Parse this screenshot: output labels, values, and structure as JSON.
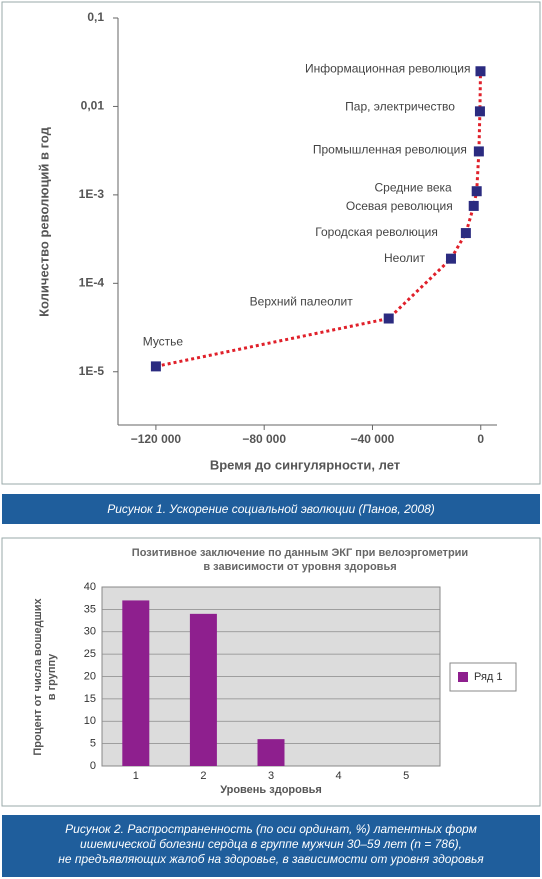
{
  "chart_data": [
    {
      "type": "scatter",
      "x_label": "Время до сингулярности, лет",
      "y_label": "Количество революций в год",
      "caption": "Рисунок 1.  Ускорение социальной эволюции (Панов, 2008)",
      "series": [
        {
          "color": "#2b2b80",
          "x": [
            -120000,
            -34000,
            -11000,
            -5500,
            -2600,
            -1500,
            -700,
            -300,
            -100
          ],
          "values": [
            1.15e-05,
            4e-05,
            0.00019,
            0.00037,
            0.00075,
            0.0011,
            0.0031,
            0.0088,
            0.025
          ],
          "labels": [
            "Мустье",
            "Верхний палеолит",
            "Неолит",
            "Городская революция",
            "Осевая революция",
            "Средние века",
            "Промышленная революция",
            "Пар, электричество",
            "Информационная революция"
          ]
        }
      ],
      "trendline": true,
      "trendline_color": "#e0202a",
      "log_y": true,
      "xlim": [
        -134000,
        6000
      ],
      "xticks": [
        {
          "value": -120000,
          "label": "−120 000"
        },
        {
          "value": -80000,
          "label": "−80 000"
        },
        {
          "value": -40000,
          "label": "−40 000"
        },
        0
      ],
      "ylim": [
        2.5e-06,
        0.1
      ],
      "yticks": [
        {
          "value": 0.1,
          "label": "0,1"
        },
        {
          "value": 0.01,
          "label": "0,01"
        },
        {
          "value": 0.001,
          "label": "1E-3"
        },
        {
          "value": 0.0001,
          "label": "1E-4"
        },
        {
          "value": 1e-05,
          "label": "1E-5"
        }
      ]
    },
    {
      "type": "bar",
      "title": [
        "Позитивное заключение по данным ЭКГ при велоэргометрии",
        "в зависимости от уровня здоровья"
      ],
      "x_label": "Уровень здоровья",
      "y_label": [
        "Процент от числа вошедших",
        "в группу"
      ],
      "caption": [
        "Рисунок 2.  Распространенность (по оси ординат, %) латентных форм",
        "ишемической болезни сердца в группе мужчин 30–59 лет (n = 786),",
        "не предъявляющих жалоб на здоровье, в зависимости от уровня здоровья"
      ],
      "categories": [
        "1",
        "2",
        "3",
        "4",
        "5"
      ],
      "series": [
        {
          "name": "Ряд 1",
          "color": "#8e1f8e",
          "values": [
            37,
            34,
            6,
            0,
            0
          ]
        }
      ],
      "ylim": [
        0,
        40
      ],
      "yticks": [
        0,
        5,
        10,
        15,
        20,
        25,
        30,
        35,
        40
      ],
      "grid": true,
      "legend": "right"
    }
  ]
}
